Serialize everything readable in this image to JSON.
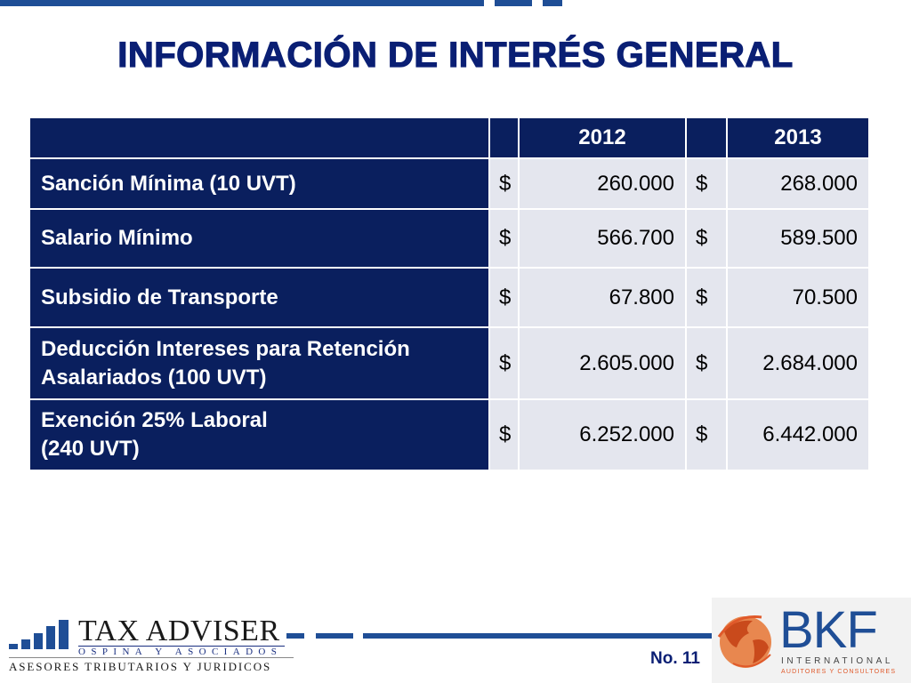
{
  "slide": {
    "title": "INFORMACIÓN DE INTERÉS GENERAL",
    "page_number": "No. 11"
  },
  "table": {
    "headers": [
      "",
      "",
      "2012",
      "",
      "2013"
    ],
    "rows": [
      {
        "label": "Sanción Mínima  (10 UVT)",
        "cur_a": "$",
        "val_2012": "260.000",
        "cur_b": "$",
        "val_2013": "268.000"
      },
      {
        "label": "Salario Mínimo",
        "cur_a": "$",
        "val_2012": "566.700",
        "cur_b": "$",
        "val_2013": "589.500"
      },
      {
        "label": "Subsidio de Transporte",
        "cur_a": "$",
        "val_2012": "67.800",
        "cur_b": "$",
        "val_2013": "70.500"
      },
      {
        "label_line1": "Deducción Intereses para Retención",
        "label_line2": "Asalariados  (100 UVT)",
        "cur_a": "$",
        "val_2012": "2.605.000",
        "cur_b": "$",
        "val_2013": "2.684.000"
      },
      {
        "label_line1": "Exención 25% Laboral",
        "label_line2": "(240 UVT)",
        "cur_a": "$",
        "val_2012": "6.252.000",
        "cur_b": "$",
        "val_2013": "6.442.000"
      }
    ]
  },
  "footer": {
    "tax_adviser": {
      "name": "TAX ADVISER",
      "sub": "OSPINA Y ASOCIADOS",
      "tagline": "ASESORES TRIBUTARIOS Y JURIDICOS"
    },
    "bkf": {
      "name": "BKF",
      "line1": "INTERNATIONAL",
      "line2": "AUDITORES Y CONSULTORES"
    }
  },
  "colors": {
    "navy": "#0a1f5e",
    "accent_blue": "#1f4e96",
    "cell_gray": "#e4e6ee",
    "orange": "#e0592a"
  },
  "icons": [
    "bar-chart-logo-icon",
    "globe-logo-icon"
  ]
}
